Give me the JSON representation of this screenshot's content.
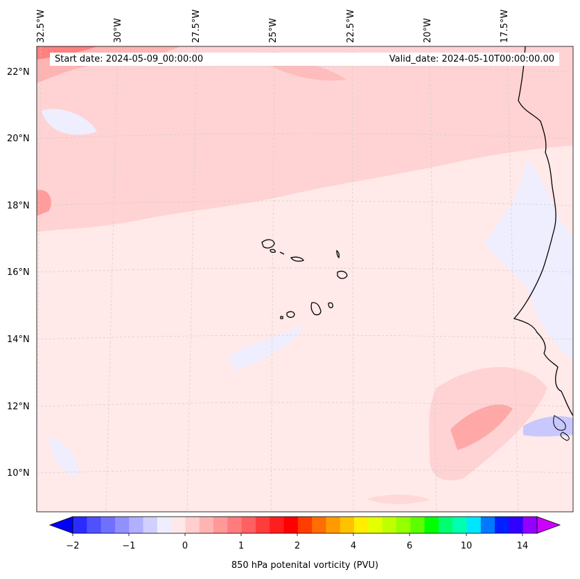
{
  "map": {
    "start_label": "Start date: 2024-05-09_00:00:00",
    "valid_label": "Valid_date: 2024-05-10T00:00:00.00",
    "lat_labels": [
      "22°N",
      "20°N",
      "18°N",
      "16°N",
      "14°N",
      "12°N",
      "10°N"
    ],
    "lon_labels": [
      "32.5°W",
      "30°W",
      "27.5°W",
      "25°W",
      "22.5°W",
      "20°W",
      "17.5°W"
    ],
    "region": "Cape Verde Islands and West African coast"
  },
  "colorbar": {
    "title": "850 hPa potenital vorticity (PVU)",
    "tick_labels": [
      "−2",
      "−1",
      "0",
      "1",
      "2",
      "4",
      "6",
      "10",
      "14"
    ],
    "colors": [
      "#0000ff",
      "#2b2bff",
      "#5050ff",
      "#7070ff",
      "#9090ff",
      "#b0b0ff",
      "#d0d0ff",
      "#eeeeff",
      "#ffe8e8",
      "#ffcfcf",
      "#ffb4b4",
      "#ff9898",
      "#ff7c7c",
      "#ff6060",
      "#ff3c3c",
      "#ff1e1e",
      "#ff0000",
      "#ff3c00",
      "#ff6e00",
      "#ff9a00",
      "#ffc200",
      "#ffee00",
      "#e4ff00",
      "#c0ff00",
      "#96ff00",
      "#5cff00",
      "#00ff00",
      "#00ff6e",
      "#00ffb0",
      "#00e6ff",
      "#0078ff",
      "#0020ff",
      "#3200ff",
      "#9400ff",
      "#cc00ff"
    ]
  }
}
